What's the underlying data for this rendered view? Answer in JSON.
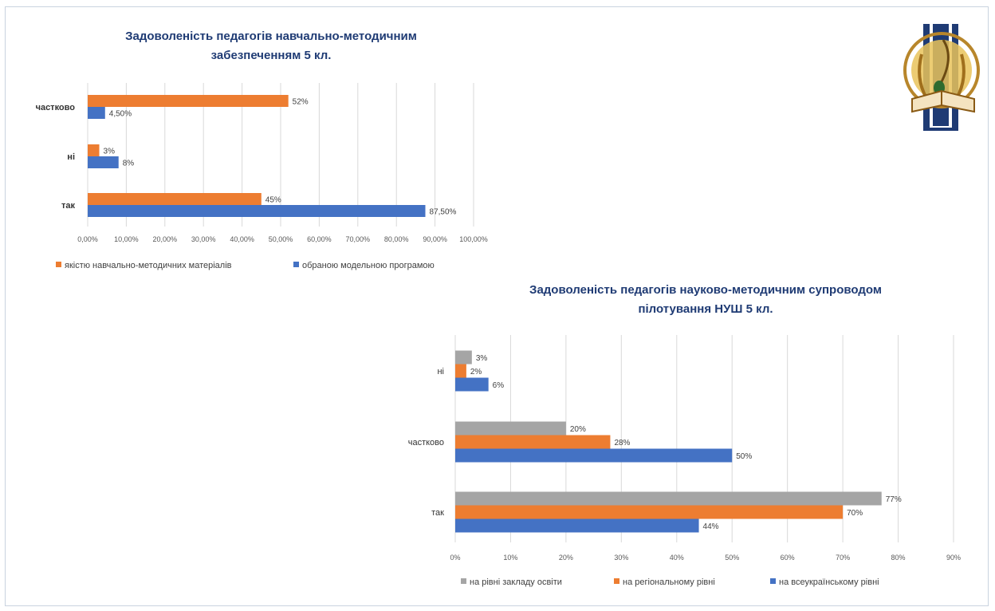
{
  "colors": {
    "orange": "#ed7d31",
    "blue": "#4472c4",
    "gray": "#a5a5a5",
    "title": "#1f3b74",
    "grid": "#d9d9d9",
    "tick": "#595959"
  },
  "logo": {
    "icon": "book-quill-emblem-icon"
  },
  "chart_data": [
    {
      "type": "bar",
      "orientation": "horizontal",
      "title": [
        "Задоволеність  педагогів  навчально-методичним",
        "забезпеченням  5 кл."
      ],
      "categories": [
        "частково",
        "ні",
        "так"
      ],
      "series": [
        {
          "name": "якістю навчально-методичних матеріалів",
          "color": "#ed7d31",
          "values": [
            52,
            3,
            45
          ],
          "labels": [
            "52%",
            "3%",
            "45%"
          ]
        },
        {
          "name": "обраною модельною програмою",
          "color": "#4472c4",
          "values": [
            4.5,
            8,
            87.5
          ],
          "labels": [
            "4,50%",
            "8%",
            "87,50%"
          ]
        }
      ],
      "xlim": [
        0,
        100
      ],
      "xticks": [
        "0,00%",
        "10,00%",
        "20,00%",
        "30,00%",
        "40,00%",
        "50,00%",
        "60,00%",
        "70,00%",
        "80,00%",
        "90,00%",
        "100,00%"
      ],
      "grid": true,
      "legend": "bottom"
    },
    {
      "type": "bar",
      "orientation": "horizontal",
      "title": [
        "Задоволеність  педагогів  науково-методичним  супроводом",
        "пілотування  НУШ 5 кл."
      ],
      "categories": [
        "ні",
        "частково",
        "так"
      ],
      "series": [
        {
          "name": "на рівні закладу освіти",
          "color": "#a5a5a5",
          "values": [
            3,
            20,
            77
          ],
          "labels": [
            "3%",
            "20%",
            "77%"
          ]
        },
        {
          "name": "на регіональному рівні",
          "color": "#ed7d31",
          "values": [
            2,
            28,
            70
          ],
          "labels": [
            "2%",
            "28%",
            "70%"
          ]
        },
        {
          "name": "на всеукраїнському рівні",
          "color": "#4472c4",
          "values": [
            6,
            50,
            44
          ],
          "labels": [
            "6%",
            "50%",
            "44%"
          ]
        }
      ],
      "xlim": [
        0,
        90
      ],
      "xticks": [
        "0%",
        "10%",
        "20%",
        "30%",
        "40%",
        "50%",
        "60%",
        "70%",
        "80%",
        "90%"
      ],
      "grid": true,
      "legend": "bottom"
    }
  ]
}
